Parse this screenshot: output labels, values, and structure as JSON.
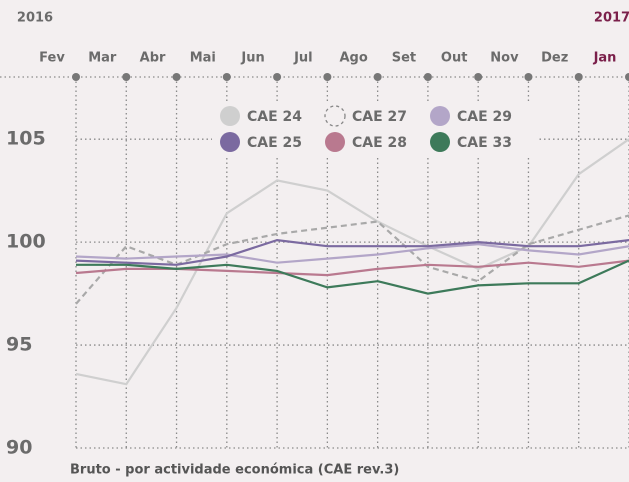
{
  "chart_data": {
    "type": "line",
    "year_labels": [
      "2016",
      "2017"
    ],
    "caption": "Bruto - por actividade económica (CAE rev.3)",
    "categories": [
      "Fev",
      "Mar",
      "Abr",
      "Mai",
      "Jun",
      "Jul",
      "Ago",
      "Set",
      "Out",
      "Nov",
      "Dez",
      "Jan"
    ],
    "ylim": [
      90,
      107
    ],
    "yticks": [
      90,
      95,
      100,
      105
    ],
    "grid": true,
    "series": [
      {
        "name": "CAE 24",
        "color": "#cfcfcf",
        "style": "solid",
        "values": [
          93.6,
          93.1,
          96.8,
          101.4,
          103.0,
          102.5,
          101.0,
          99.8,
          98.7,
          99.8,
          103.3,
          105.0
        ]
      },
      {
        "name": "CAE 27",
        "color": "#a9a9a9",
        "style": "dashed",
        "values": [
          97.0,
          99.8,
          98.9,
          99.9,
          100.4,
          100.7,
          101.0,
          98.8,
          98.1,
          99.9,
          100.6,
          101.3
        ]
      },
      {
        "name": "CAE 29",
        "color": "#b3a6c8",
        "style": "solid",
        "values": [
          99.3,
          99.2,
          99.3,
          99.4,
          99.0,
          99.2,
          99.4,
          99.7,
          99.9,
          99.6,
          99.4,
          99.8
        ]
      },
      {
        "name": "CAE 25",
        "color": "#7b6aa0",
        "style": "solid",
        "values": [
          99.1,
          99.0,
          98.9,
          99.3,
          100.1,
          99.8,
          99.8,
          99.8,
          100.0,
          99.8,
          99.8,
          100.1
        ]
      },
      {
        "name": "CAE 28",
        "color": "#b9798f",
        "style": "solid",
        "values": [
          98.5,
          98.7,
          98.7,
          98.6,
          98.5,
          98.4,
          98.7,
          98.9,
          98.8,
          99.0,
          98.8,
          99.1
        ]
      },
      {
        "name": "CAE 33",
        "color": "#3d7a5a",
        "style": "solid",
        "values": [
          98.9,
          98.9,
          98.7,
          98.9,
          98.6,
          97.8,
          98.1,
          97.5,
          97.9,
          98.0,
          98.0,
          99.1
        ]
      }
    ]
  }
}
